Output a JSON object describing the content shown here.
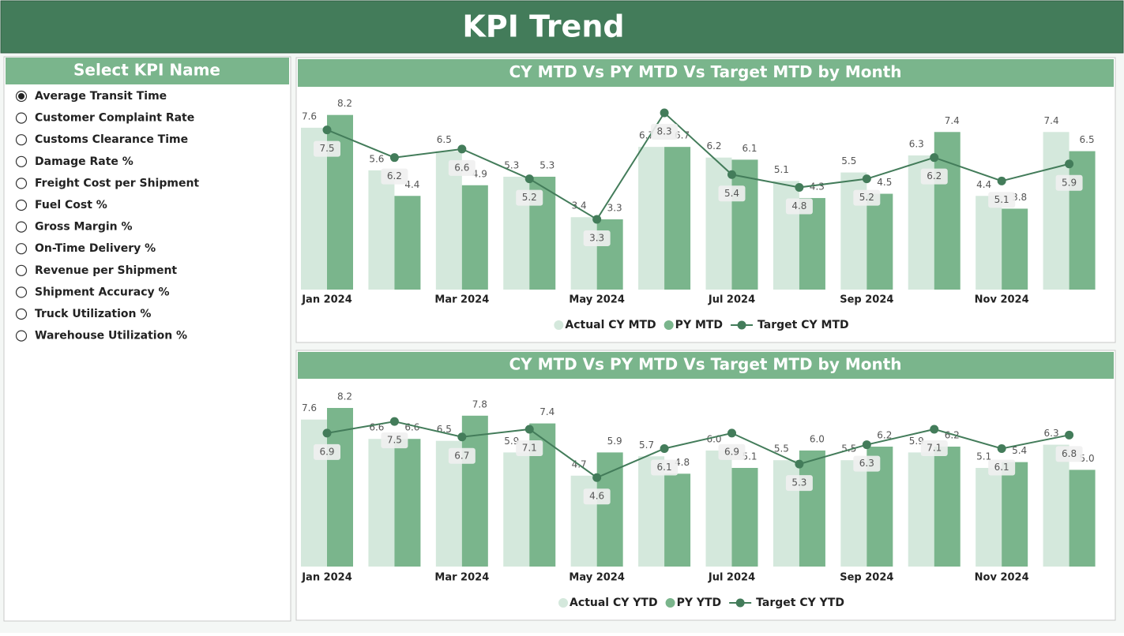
{
  "header": {
    "title": "KPI Trend"
  },
  "slicer": {
    "title": "Select KPI Name",
    "options": [
      {
        "label": "Average Transit Time",
        "selected": true
      },
      {
        "label": "Customer Complaint Rate",
        "selected": false
      },
      {
        "label": "Customs Clearance Time",
        "selected": false
      },
      {
        "label": "Damage Rate %",
        "selected": false
      },
      {
        "label": "Freight Cost per Shipment",
        "selected": false
      },
      {
        "label": "Fuel Cost %",
        "selected": false
      },
      {
        "label": "Gross Margin %",
        "selected": false
      },
      {
        "label": "On-Time Delivery %",
        "selected": false
      },
      {
        "label": "Revenue per Shipment",
        "selected": false
      },
      {
        "label": "Shipment Accuracy %",
        "selected": false
      },
      {
        "label": "Truck Utilization %",
        "selected": false
      },
      {
        "label": "Warehouse Utilization %",
        "selected": false
      }
    ]
  },
  "chart_data": [
    {
      "type": "combo",
      "title": "CY MTD Vs PY MTD Vs Target MTD by Month",
      "categories": [
        "Jan 2024",
        null,
        "Mar 2024",
        null,
        "May 2024",
        null,
        "Jul 2024",
        null,
        "Sep 2024",
        null,
        "Nov 2024",
        null
      ],
      "series": [
        {
          "name": "Actual CY MTD",
          "kind": "bar",
          "color": "#d4e8dc",
          "values": [
            7.6,
            5.6,
            6.5,
            5.3,
            3.4,
            6.7,
            6.2,
            5.1,
            5.5,
            6.3,
            4.4,
            7.4
          ]
        },
        {
          "name": "PY MTD",
          "kind": "bar",
          "color": "#7ab58c",
          "values": [
            8.2,
            4.4,
            4.9,
            5.3,
            3.3,
            6.7,
            6.1,
            4.3,
            4.5,
            7.4,
            3.8,
            6.5
          ]
        },
        {
          "name": "Target CY MTD",
          "kind": "line",
          "color": "#437c5a",
          "values": [
            7.5,
            6.2,
            6.6,
            5.2,
            3.3,
            8.3,
            5.4,
            4.8,
            5.2,
            6.2,
            5.1,
            5.9
          ]
        }
      ]
    },
    {
      "type": "combo",
      "title": "CY MTD Vs PY MTD Vs Target MTD by Month",
      "categories": [
        "Jan 2024",
        null,
        "Mar 2024",
        null,
        "May 2024",
        null,
        "Jul 2024",
        null,
        "Sep 2024",
        null,
        "Nov 2024",
        null
      ],
      "series": [
        {
          "name": "Actual CY YTD",
          "kind": "bar",
          "color": "#d4e8dc",
          "values": [
            7.6,
            6.6,
            6.5,
            5.9,
            4.7,
            5.7,
            6,
            5.5,
            5.5,
            5.9,
            5.1,
            6.3
          ],
          "value_labels": [
            "7.6",
            "6.6",
            "6.5",
            "5.9",
            "4.7",
            "5.7",
            "6.0",
            "5.5",
            "5.5",
            "5.9",
            "5.1",
            "6.3"
          ]
        },
        {
          "name": "PY YTD",
          "kind": "bar",
          "color": "#7ab58c",
          "values": [
            8.2,
            6.6,
            7.8,
            7.4,
            5.9,
            4.8,
            5.1,
            6,
            6.2,
            6.2,
            5.4,
            5
          ],
          "value_labels": [
            "8.2",
            "6.6",
            "7.8",
            "7.4",
            "5.9",
            "4.8",
            "5.1",
            "6.0",
            "6.2",
            "6.2",
            "5.4",
            "5.0"
          ]
        },
        {
          "name": "Target CY YTD",
          "kind": "line",
          "color": "#437c5a",
          "values": [
            6.9,
            7.5,
            6.7,
            7.1,
            4.6,
            6.1,
            6.9,
            5.3,
            6.3,
            7.1,
            6.1,
            6.8
          ]
        }
      ]
    }
  ]
}
